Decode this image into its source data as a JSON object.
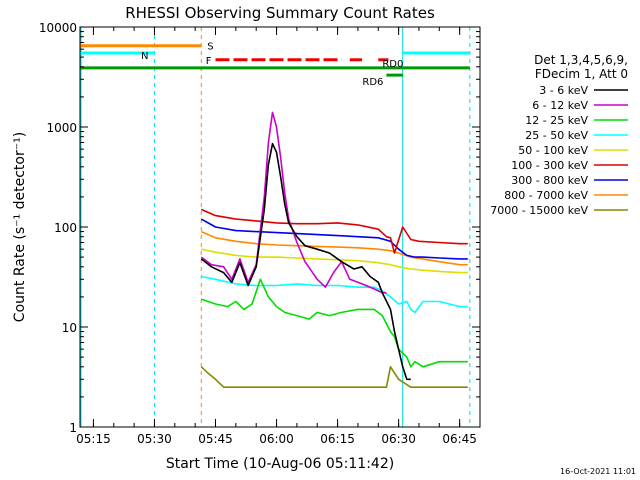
{
  "chart_data": {
    "type": "line",
    "title": "RHESSI Observing Summary Count Rates",
    "xlabel": "Start Time (10-Aug-06 05:11:42)",
    "ylabel": "Count Rate (s⁻¹ detector⁻¹)",
    "yscale": "log",
    "xlim": [
      "05:11:42",
      "06:50:00"
    ],
    "ylim": [
      1,
      10000
    ],
    "x_ticks": [
      "05:15",
      "05:30",
      "05:45",
      "06:00",
      "06:15",
      "06:30",
      "06:45"
    ],
    "y_ticks": [
      "1",
      "10",
      "100",
      "1000",
      "10000"
    ],
    "legend_header": [
      "Det 1,3,4,5,6,9,",
      "FDecim 1, Att 0"
    ],
    "legend_position": "right",
    "footer_date": "16-Oct-2021 11:01",
    "series": [
      {
        "name": "3 - 6 keV",
        "color": "#000000",
        "x": [
          "05:41:30",
          "05:44",
          "05:47",
          "05:49",
          "05:51",
          "05:53",
          "05:55",
          "05:57",
          "05:58",
          "05:59",
          "06:00",
          "06:01",
          "06:02",
          "06:03",
          "06:05",
          "06:07",
          "06:10",
          "06:13",
          "06:16",
          "06:19",
          "06:21",
          "06:23",
          "06:25",
          "06:26",
          "06:28",
          "06:29",
          "06:30",
          "06:31",
          "06:32",
          "06:33"
        ],
        "values": [
          48,
          40,
          35,
          28,
          44,
          26,
          40,
          150,
          420,
          680,
          560,
          320,
          170,
          110,
          80,
          65,
          60,
          55,
          45,
          38,
          40,
          32,
          28,
          22,
          15,
          9,
          6,
          4,
          3,
          3
        ]
      },
      {
        "name": "6 - 12 keV",
        "color": "#cc00cc",
        "x": [
          "05:41:30",
          "05:44",
          "05:47",
          "05:49",
          "05:51",
          "05:53",
          "05:55",
          "05:57",
          "05:58",
          "05:59",
          "06:00",
          "06:01",
          "06:02",
          "06:03",
          "06:05",
          "06:07",
          "06:10",
          "06:12",
          "06:14",
          "06:16",
          "06:18",
          "06:20",
          "06:22",
          "06:24",
          "06:26",
          "06:27"
        ],
        "values": [
          50,
          42,
          40,
          30,
          48,
          28,
          42,
          200,
          700,
          1400,
          1000,
          500,
          220,
          120,
          70,
          45,
          30,
          25,
          35,
          45,
          30,
          28,
          26,
          24,
          22,
          22
        ]
      },
      {
        "name": "12 - 25 keV",
        "color": "#00dd00",
        "x": [
          "05:41:30",
          "05:45",
          "05:48",
          "05:50",
          "05:52",
          "05:54",
          "05:56",
          "05:58",
          "06:00",
          "06:02",
          "06:05",
          "06:08",
          "06:10",
          "06:13",
          "06:16",
          "06:20",
          "06:24",
          "06:26",
          "06:28",
          "06:29",
          "06:30",
          "06:32",
          "06:33",
          "06:34",
          "06:36",
          "06:40",
          "06:45",
          "06:47"
        ],
        "values": [
          19,
          17,
          16,
          18,
          15,
          17,
          30,
          20,
          16,
          14,
          13,
          12,
          14,
          13,
          14,
          15,
          15,
          13,
          9,
          8,
          6,
          5,
          4,
          4.5,
          4,
          4.5,
          4.5,
          4.5
        ]
      },
      {
        "name": "25 - 50 keV",
        "color": "#00ffff",
        "x": [
          "05:41:30",
          "05:45",
          "05:50",
          "05:55",
          "06:00",
          "06:05",
          "06:10",
          "06:15",
          "06:20",
          "06:24",
          "06:26",
          "06:28",
          "06:30",
          "06:32",
          "06:33",
          "06:34",
          "06:36",
          "06:40",
          "06:45",
          "06:47"
        ],
        "values": [
          32,
          30,
          27,
          26,
          26,
          27,
          26,
          26,
          25,
          25,
          23,
          20,
          17,
          18,
          15,
          14,
          18,
          18,
          16,
          16
        ]
      },
      {
        "name": "50 - 100 keV",
        "color": "#dddd00",
        "x": [
          "05:41:30",
          "05:45",
          "05:50",
          "05:55",
          "06:00",
          "06:05",
          "06:10",
          "06:15",
          "06:20",
          "06:25",
          "06:28",
          "06:30",
          "06:33",
          "06:36",
          "06:40",
          "06:45",
          "06:47"
        ],
        "values": [
          60,
          56,
          52,
          50,
          50,
          49,
          48,
          47,
          46,
          44,
          42,
          40,
          38,
          37,
          36,
          35,
          35
        ]
      },
      {
        "name": "100 - 300 keV",
        "color": "#dd0000",
        "x": [
          "05:41:30",
          "05:45",
          "05:50",
          "05:55",
          "06:00",
          "06:05",
          "06:10",
          "06:15",
          "06:20",
          "06:25",
          "06:27",
          "06:28",
          "06:29",
          "06:31",
          "06:33",
          "06:35",
          "06:40",
          "06:45",
          "06:47"
        ],
        "values": [
          150,
          130,
          120,
          115,
          110,
          108,
          108,
          110,
          105,
          95,
          80,
          78,
          55,
          100,
          75,
          72,
          70,
          68,
          68
        ]
      },
      {
        "name": "300 - 800 keV",
        "color": "#0000ee",
        "x": [
          "05:41:30",
          "05:45",
          "05:50",
          "05:55",
          "06:00",
          "06:05",
          "06:10",
          "06:15",
          "06:20",
          "06:25",
          "06:28",
          "06:30",
          "06:32",
          "06:34",
          "06:36",
          "06:40",
          "06:45",
          "06:47"
        ],
        "values": [
          120,
          100,
          92,
          90,
          88,
          86,
          84,
          82,
          80,
          78,
          72,
          60,
          52,
          50,
          50,
          49,
          48,
          48
        ]
      },
      {
        "name": "800 - 7000 keV",
        "color": "#ff8800",
        "x": [
          "05:41:30",
          "05:45",
          "05:50",
          "05:55",
          "06:00",
          "06:05",
          "06:10",
          "06:15",
          "06:20",
          "06:25",
          "06:28",
          "06:30",
          "06:33",
          "06:36",
          "06:40",
          "06:45",
          "06:47"
        ],
        "values": [
          90,
          78,
          72,
          68,
          66,
          65,
          64,
          63,
          62,
          60,
          58,
          55,
          50,
          48,
          45,
          42,
          42
        ]
      },
      {
        "name": "7000 - 15000 keV",
        "color": "#888800",
        "x": [
          "05:41:30",
          "05:43",
          "05:45",
          "05:47",
          "05:50",
          "05:55",
          "06:00",
          "06:05",
          "06:10",
          "06:15",
          "06:20",
          "06:25",
          "06:27",
          "06:28",
          "06:30",
          "06:33",
          "06:36",
          "06:40",
          "06:45",
          "06:47"
        ],
        "values": [
          4,
          3.5,
          3,
          2.5,
          2.5,
          2.5,
          2.5,
          2.5,
          2.5,
          2.5,
          2.5,
          2.5,
          2.5,
          4,
          3,
          2.5,
          2.5,
          2.5,
          2.5,
          2.5
        ]
      }
    ],
    "state_bars": [
      {
        "label": "S",
        "color": "#ff8800",
        "value": 6500,
        "segments": [
          [
            "05:11:42",
            "05:41:30"
          ]
        ]
      },
      {
        "label": "N",
        "color": "#00ffff",
        "value": 5500,
        "segments": [
          [
            "05:11:42",
            "05:30:00"
          ],
          [
            "06:31:00",
            "06:47:30"
          ]
        ]
      },
      {
        "label": "F",
        "color": "#ee0000",
        "value": 4700,
        "dashed": true,
        "segments": [
          [
            "05:45:00",
            "06:16:00"
          ],
          [
            "06:18:00",
            "06:21:00"
          ],
          [
            "06:25:00",
            "06:27:30"
          ]
        ]
      },
      {
        "label": "RD0",
        "color": "#009900",
        "value": 3900,
        "segments": [
          [
            "05:11:42",
            "06:47:30"
          ]
        ]
      },
      {
        "label": "RD6",
        "color": "#009900",
        "value": 3300,
        "segments": [
          [
            "06:27:00",
            "06:31:00"
          ]
        ]
      }
    ],
    "vertical_lines": [
      {
        "time": "05:30:00",
        "color": "#00dddd",
        "dashed": true
      },
      {
        "time": "05:41:30",
        "color": "#ff8800",
        "dashed": true
      },
      {
        "time": "06:31:00",
        "color": "#00dddd",
        "dashed": false
      },
      {
        "time": "06:47:30",
        "color": "#00dddd",
        "dashed": true
      }
    ]
  }
}
